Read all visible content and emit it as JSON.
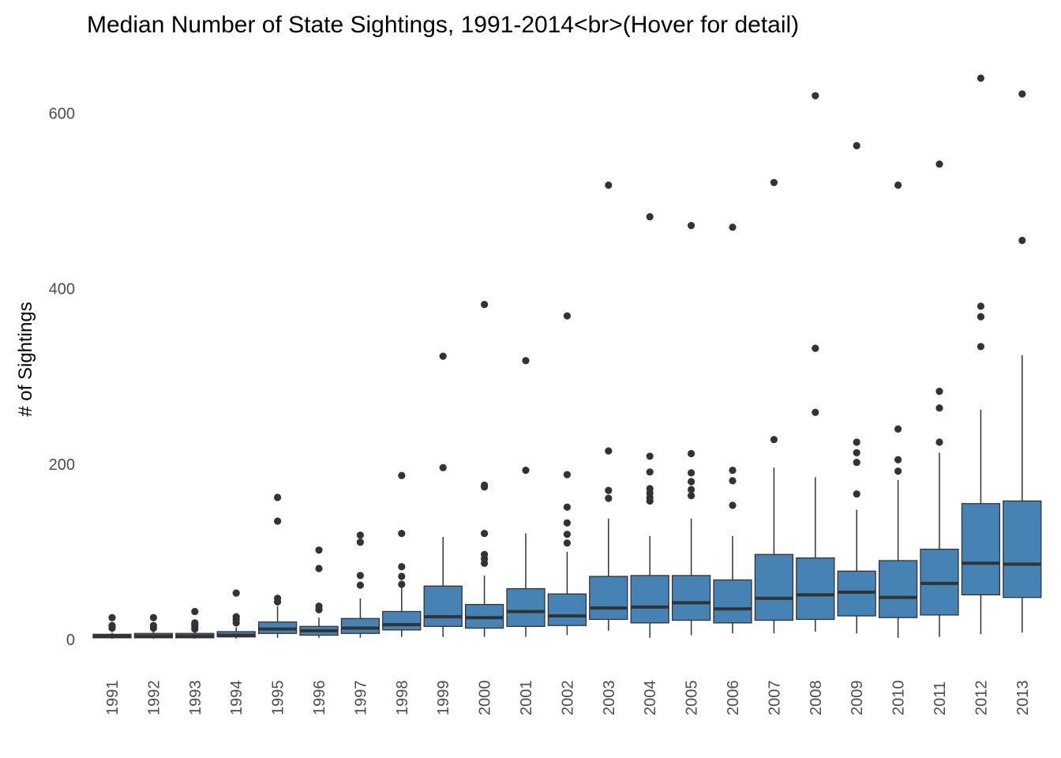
{
  "chart_data": {
    "type": "box",
    "title": "Median Number of State Sightings, 1991-2014<br>(Hover for detail)",
    "xlabel": "",
    "ylabel": "# of Sightings",
    "ylim": [
      -35,
      660
    ],
    "yticks": [
      0,
      200,
      400,
      600
    ],
    "grid": false,
    "legend": "none",
    "colors": {
      "box_fill": "#4682b4",
      "stroke": "#333333",
      "outlier": "#333333"
    },
    "categories": [
      "1991",
      "1992",
      "1993",
      "1994",
      "1995",
      "1996",
      "1997",
      "1998",
      "1999",
      "2000",
      "2001",
      "2002",
      "2003",
      "2004",
      "2005",
      "2006",
      "2007",
      "2008",
      "2009",
      "2010",
      "2011",
      "2012",
      "2013"
    ],
    "boxes": [
      {
        "x": "1991",
        "low": 1,
        "q1": 2,
        "median": 4,
        "q3": 6,
        "high": 8,
        "outliers": [
          13,
          16,
          25
        ]
      },
      {
        "x": "1992",
        "low": 1,
        "q1": 2,
        "median": 4,
        "q3": 7,
        "high": 10,
        "outliers": [
          13,
          16,
          25
        ]
      },
      {
        "x": "1993",
        "low": 1,
        "q1": 2,
        "median": 4,
        "q3": 7,
        "high": 10,
        "outliers": [
          12,
          15,
          17,
          19,
          32
        ]
      },
      {
        "x": "1994",
        "low": 1,
        "q1": 3,
        "median": 5,
        "q3": 9,
        "high": 14,
        "outliers": [
          19,
          23,
          26,
          53
        ]
      },
      {
        "x": "1995",
        "low": 2,
        "q1": 7,
        "median": 12,
        "q3": 20,
        "high": 38,
        "outliers": [
          43,
          47,
          135,
          162
        ]
      },
      {
        "x": "1996",
        "low": 2,
        "q1": 5,
        "median": 10,
        "q3": 15,
        "high": 25,
        "outliers": [
          34,
          38,
          81,
          102
        ]
      },
      {
        "x": "1997",
        "low": 2,
        "q1": 7,
        "median": 13,
        "q3": 24,
        "high": 47,
        "outliers": [
          62,
          73,
          111,
          119
        ]
      },
      {
        "x": "1998",
        "low": 3,
        "q1": 11,
        "median": 17,
        "q3": 32,
        "high": 60,
        "outliers": [
          63,
          72,
          83,
          121,
          187
        ]
      },
      {
        "x": "1999",
        "low": 3,
        "q1": 15,
        "median": 26,
        "q3": 61,
        "high": 117,
        "outliers": [
          196,
          323
        ]
      },
      {
        "x": "2000",
        "low": 3,
        "q1": 13,
        "median": 25,
        "q3": 40,
        "high": 73,
        "outliers": [
          87,
          92,
          97,
          121,
          174,
          176,
          382
        ]
      },
      {
        "x": "2001",
        "low": 3,
        "q1": 15,
        "median": 32,
        "q3": 58,
        "high": 121,
        "outliers": [
          193,
          318
        ]
      },
      {
        "x": "2002",
        "low": 5,
        "q1": 16,
        "median": 27,
        "q3": 52,
        "high": 100,
        "outliers": [
          110,
          120,
          133,
          151,
          188,
          369
        ]
      },
      {
        "x": "2003",
        "low": 10,
        "q1": 23,
        "median": 36,
        "q3": 72,
        "high": 138,
        "outliers": [
          161,
          170,
          215,
          518
        ]
      },
      {
        "x": "2004",
        "low": 2,
        "q1": 19,
        "median": 37,
        "q3": 73,
        "high": 118,
        "outliers": [
          158,
          162,
          167,
          172,
          191,
          209,
          482
        ]
      },
      {
        "x": "2005",
        "low": 5,
        "q1": 22,
        "median": 42,
        "q3": 73,
        "high": 138,
        "outliers": [
          164,
          171,
          180,
          190,
          212,
          472
        ]
      },
      {
        "x": "2006",
        "low": 7,
        "q1": 19,
        "median": 35,
        "q3": 68,
        "high": 118,
        "outliers": [
          153,
          181,
          193,
          470
        ]
      },
      {
        "x": "2007",
        "low": 7,
        "q1": 22,
        "median": 47,
        "q3": 97,
        "high": 196,
        "outliers": [
          228,
          521
        ]
      },
      {
        "x": "2008",
        "low": 9,
        "q1": 23,
        "median": 51,
        "q3": 93,
        "high": 185,
        "outliers": [
          259,
          332,
          620
        ]
      },
      {
        "x": "2009",
        "low": 7,
        "q1": 27,
        "median": 54,
        "q3": 78,
        "high": 148,
        "outliers": [
          166,
          202,
          213,
          225,
          563
        ]
      },
      {
        "x": "2010",
        "low": 2,
        "q1": 25,
        "median": 48,
        "q3": 90,
        "high": 182,
        "outliers": [
          192,
          205,
          240,
          518
        ]
      },
      {
        "x": "2011",
        "low": 3,
        "q1": 28,
        "median": 64,
        "q3": 103,
        "high": 213,
        "outliers": [
          225,
          264,
          283,
          542
        ]
      },
      {
        "x": "2012",
        "low": 6,
        "q1": 51,
        "median": 87,
        "q3": 155,
        "high": 262,
        "outliers": [
          334,
          368,
          380,
          640
        ]
      },
      {
        "x": "2013",
        "low": 8,
        "q1": 48,
        "median": 86,
        "q3": 158,
        "high": 324,
        "outliers": [
          455,
          622
        ]
      }
    ]
  }
}
